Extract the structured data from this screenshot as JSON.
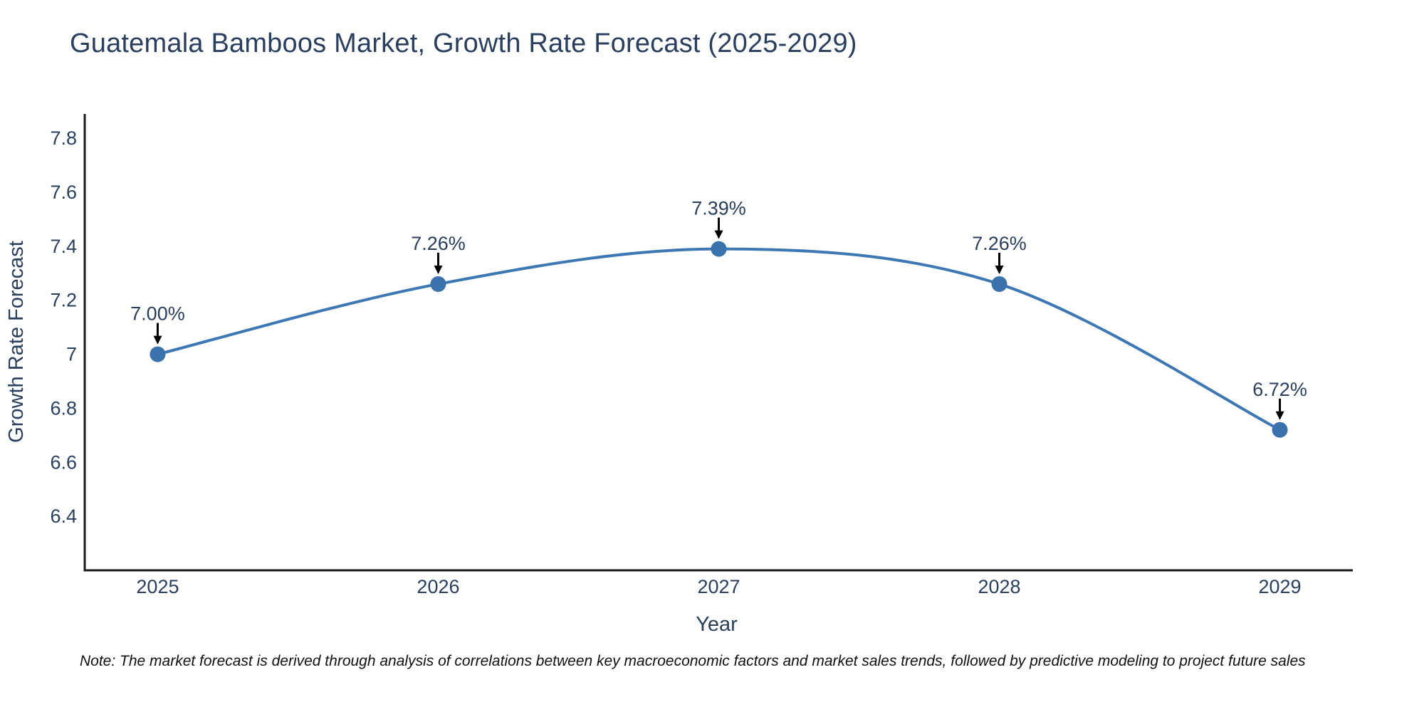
{
  "title": "Guatemala Bamboos Market, Growth Rate Forecast (2025-2029)",
  "note": "Note: The market forecast is derived through analysis of correlations between key macroeconomic factors and market sales trends, followed by predictive modeling to project future sales",
  "chart_data": {
    "type": "line",
    "title": "Guatemala Bamboos Market, Growth Rate Forecast (2025-2029)",
    "xlabel": "Year",
    "ylabel": "Growth Rate Forecast",
    "x": [
      2025,
      2026,
      2027,
      2028,
      2029
    ],
    "y": [
      7.0,
      7.26,
      7.39,
      7.26,
      6.72
    ],
    "point_labels": [
      "7.00%",
      "7.26%",
      "7.39%",
      "7.26%",
      "6.72%"
    ],
    "xtick_values": [
      2025,
      2026,
      2027,
      2028,
      2029
    ],
    "xtick_labels": [
      "2025",
      "2026",
      "2027",
      "2028",
      "2029"
    ],
    "ytick_values": [
      6.4,
      6.6,
      6.8,
      7.0,
      7.2,
      7.4,
      7.6,
      7.8
    ],
    "ytick_labels": [
      "6.4",
      "6.6",
      "6.8",
      "7",
      "7.2",
      "7.4",
      "7.6",
      "7.8"
    ],
    "xlim": [
      2024.74,
      2029.26
    ],
    "ylim": [
      6.2,
      7.89
    ],
    "grid": false,
    "legend": false,
    "line_shape": "spline",
    "marker_radius": 11,
    "line_width": 4,
    "colors": {
      "line": "#3e78b4",
      "marker": "#3a72ad",
      "text": "#2a3f5f",
      "axis": "#1a1a1a",
      "arrow": "#000000",
      "background": "#ffffff"
    }
  }
}
